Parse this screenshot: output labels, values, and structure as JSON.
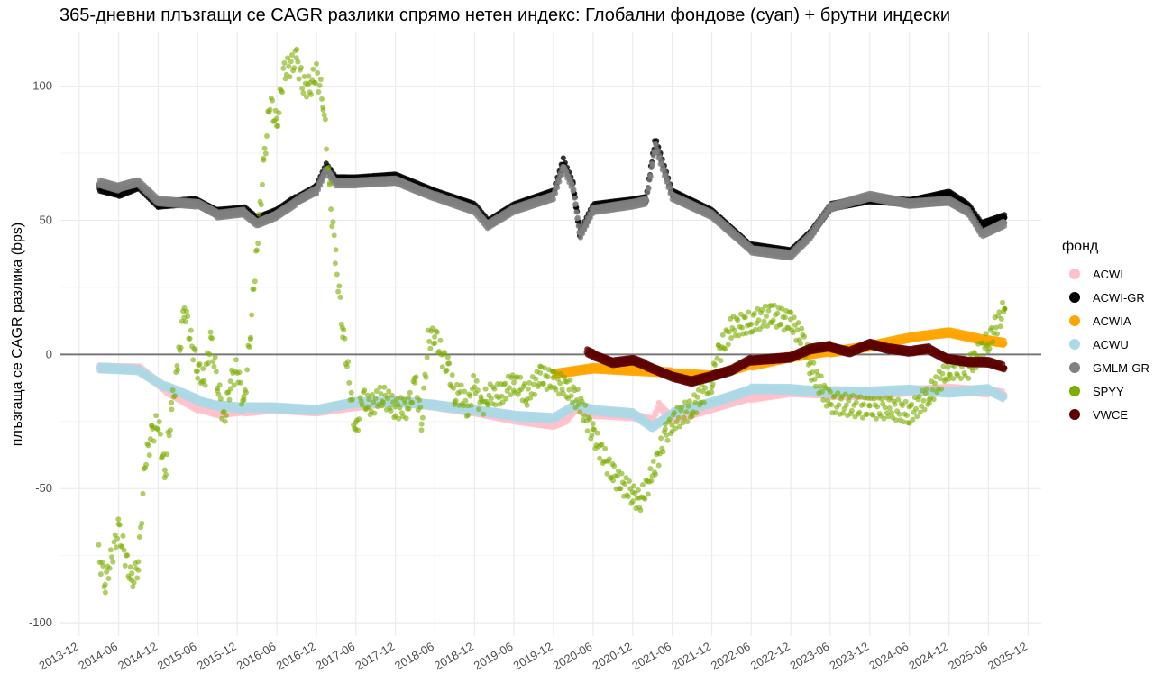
{
  "chart_data": {
    "type": "scatter",
    "title": "365-дневни плъзгащи се CAGR разлики спрямо нетен индекс: Глобални фондове (суап) + брутни индески",
    "xlabel": "",
    "ylabel": "плъзгаща се CAGR разлика (bps)",
    "xlim": [
      "2013-09-01",
      "2026-01-31"
    ],
    "ylim": [
      -105,
      120
    ],
    "y_ticks": [
      -100,
      -50,
      0,
      50,
      100
    ],
    "y_tick_labels": [
      "-100",
      "-50",
      "0",
      "50",
      "100"
    ],
    "x_ticks": [
      "2013-12-01",
      "2014-06-01",
      "2014-12-01",
      "2015-06-01",
      "2015-12-01",
      "2016-06-01",
      "2016-12-01",
      "2017-06-01",
      "2017-12-01",
      "2018-06-01",
      "2018-12-01",
      "2019-06-01",
      "2019-12-01",
      "2020-06-01",
      "2020-12-01",
      "2021-06-01",
      "2021-12-01",
      "2022-06-01",
      "2022-12-01",
      "2023-06-01",
      "2023-12-01",
      "2024-06-01",
      "2024-12-01",
      "2025-06-01",
      "2025-12-01"
    ],
    "x_tick_labels": [
      "2013-12",
      "2014-06",
      "2014-12",
      "2015-06",
      "2015-12",
      "2016-06",
      "2016-12",
      "2017-06",
      "2017-12",
      "2018-06",
      "2018-12",
      "2019-06",
      "2019-12",
      "2020-06",
      "2020-12",
      "2021-06",
      "2021-12",
      "2022-06",
      "2022-12",
      "2023-06",
      "2023-12",
      "2024-06",
      "2024-12",
      "2025-06",
      "2025-12"
    ],
    "grid": true,
    "zero_line": 0,
    "legend_title": "фонд",
    "legend_position": "right",
    "series": [
      {
        "name": "ACWI",
        "color": "#FFC0CB",
        "points": [
          [
            "2014-03-01",
            -5
          ],
          [
            "2014-09-01",
            -5
          ],
          [
            "2015-01-01",
            -13
          ],
          [
            "2015-06-01",
            -20
          ],
          [
            "2015-09-01",
            -22
          ],
          [
            "2016-01-01",
            -21
          ],
          [
            "2016-06-01",
            -20
          ],
          [
            "2016-12-01",
            -21
          ],
          [
            "2017-06-01",
            -19
          ],
          [
            "2017-12-01",
            -17
          ],
          [
            "2018-06-01",
            -19
          ],
          [
            "2018-12-01",
            -21
          ],
          [
            "2019-06-01",
            -24
          ],
          [
            "2019-12-01",
            -26
          ],
          [
            "2020-02-01",
            -24
          ],
          [
            "2020-03-15",
            -20
          ],
          [
            "2020-06-01",
            -22
          ],
          [
            "2020-12-01",
            -23
          ],
          [
            "2021-03-01",
            -25
          ],
          [
            "2021-04-01",
            -19
          ],
          [
            "2021-06-01",
            -24
          ],
          [
            "2021-12-01",
            -20
          ],
          [
            "2022-06-01",
            -16
          ],
          [
            "2022-12-01",
            -14
          ],
          [
            "2023-06-01",
            -15
          ],
          [
            "2023-12-01",
            -15
          ],
          [
            "2024-06-01",
            -14
          ],
          [
            "2024-12-01",
            -13
          ],
          [
            "2025-06-01",
            -14
          ],
          [
            "2025-08-15",
            -15
          ]
        ]
      },
      {
        "name": "ACWI-GR",
        "color": "#000000",
        "points": [
          [
            "2014-03-01",
            62
          ],
          [
            "2014-06-01",
            60
          ],
          [
            "2014-09-01",
            63
          ],
          [
            "2014-12-01",
            56
          ],
          [
            "2015-06-01",
            57
          ],
          [
            "2015-09-01",
            53
          ],
          [
            "2016-01-01",
            54
          ],
          [
            "2016-03-01",
            50
          ],
          [
            "2016-06-01",
            53
          ],
          [
            "2016-09-01",
            58
          ],
          [
            "2016-12-01",
            62
          ],
          [
            "2017-01-15",
            70
          ],
          [
            "2017-03-01",
            65
          ],
          [
            "2017-06-01",
            65
          ],
          [
            "2017-12-01",
            66
          ],
          [
            "2018-06-01",
            60
          ],
          [
            "2018-12-01",
            55
          ],
          [
            "2019-02-01",
            49
          ],
          [
            "2019-06-01",
            55
          ],
          [
            "2019-12-01",
            60
          ],
          [
            "2020-01-15",
            72
          ],
          [
            "2020-03-01",
            63
          ],
          [
            "2020-04-01",
            45
          ],
          [
            "2020-06-01",
            55
          ],
          [
            "2020-12-01",
            57
          ],
          [
            "2021-02-01",
            58
          ],
          [
            "2021-03-15",
            80
          ],
          [
            "2021-06-01",
            60
          ],
          [
            "2021-12-01",
            53
          ],
          [
            "2022-06-01",
            40
          ],
          [
            "2022-12-01",
            38
          ],
          [
            "2023-03-01",
            45
          ],
          [
            "2023-06-01",
            55
          ],
          [
            "2023-12-01",
            58
          ],
          [
            "2024-06-01",
            57
          ],
          [
            "2024-12-01",
            60
          ],
          [
            "2025-03-01",
            55
          ],
          [
            "2025-05-01",
            48
          ],
          [
            "2025-08-15",
            51
          ]
        ]
      },
      {
        "name": "ACWIA",
        "color": "#FFA500",
        "points": [
          [
            "2019-12-01",
            -7
          ],
          [
            "2020-06-01",
            -5
          ],
          [
            "2020-12-01",
            -6
          ],
          [
            "2021-06-01",
            -7
          ],
          [
            "2021-12-01",
            -8
          ],
          [
            "2022-06-01",
            -4
          ],
          [
            "2022-12-01",
            -1
          ],
          [
            "2023-06-01",
            1
          ],
          [
            "2023-12-01",
            3
          ],
          [
            "2024-06-01",
            6
          ],
          [
            "2024-12-01",
            8
          ],
          [
            "2025-06-01",
            5
          ],
          [
            "2025-08-15",
            4
          ]
        ]
      },
      {
        "name": "ACWU",
        "color": "#ADD8E6",
        "points": [
          [
            "2014-03-01",
            -5
          ],
          [
            "2014-09-01",
            -6
          ],
          [
            "2015-01-01",
            -12
          ],
          [
            "2015-06-01",
            -17
          ],
          [
            "2015-09-01",
            -19
          ],
          [
            "2016-01-01",
            -20
          ],
          [
            "2016-06-01",
            -20
          ],
          [
            "2016-12-01",
            -21
          ],
          [
            "2017-06-01",
            -18
          ],
          [
            "2017-12-01",
            -18
          ],
          [
            "2018-06-01",
            -19
          ],
          [
            "2018-12-01",
            -21
          ],
          [
            "2019-06-01",
            -23
          ],
          [
            "2019-12-01",
            -24
          ],
          [
            "2020-03-15",
            -19
          ],
          [
            "2020-06-01",
            -21
          ],
          [
            "2020-12-01",
            -22
          ],
          [
            "2021-03-01",
            -27
          ],
          [
            "2021-06-01",
            -22
          ],
          [
            "2021-12-01",
            -18
          ],
          [
            "2022-06-01",
            -13
          ],
          [
            "2022-12-01",
            -13
          ],
          [
            "2023-06-01",
            -14
          ],
          [
            "2023-12-01",
            -14
          ],
          [
            "2024-06-01",
            -13
          ],
          [
            "2024-12-01",
            -14
          ],
          [
            "2025-06-01",
            -13
          ],
          [
            "2025-08-15",
            -16
          ]
        ]
      },
      {
        "name": "GMLM-GR",
        "color": "#808080",
        "points": [
          [
            "2014-03-01",
            64
          ],
          [
            "2014-06-01",
            62
          ],
          [
            "2014-09-01",
            64
          ],
          [
            "2014-12-01",
            57
          ],
          [
            "2015-06-01",
            56
          ],
          [
            "2015-09-01",
            52
          ],
          [
            "2016-01-01",
            53
          ],
          [
            "2016-03-01",
            49
          ],
          [
            "2016-06-01",
            52
          ],
          [
            "2016-09-01",
            57
          ],
          [
            "2016-12-01",
            61
          ],
          [
            "2017-01-15",
            69
          ],
          [
            "2017-03-01",
            64
          ],
          [
            "2017-06-01",
            64
          ],
          [
            "2017-12-01",
            65
          ],
          [
            "2018-06-01",
            59
          ],
          [
            "2018-12-01",
            54
          ],
          [
            "2019-02-01",
            48
          ],
          [
            "2019-06-01",
            54
          ],
          [
            "2019-12-01",
            59
          ],
          [
            "2020-01-15",
            70
          ],
          [
            "2020-03-01",
            62
          ],
          [
            "2020-04-01",
            44
          ],
          [
            "2020-06-01",
            54
          ],
          [
            "2020-12-01",
            56
          ],
          [
            "2021-02-01",
            57
          ],
          [
            "2021-03-15",
            78
          ],
          [
            "2021-06-01",
            59
          ],
          [
            "2021-12-01",
            52
          ],
          [
            "2022-06-01",
            39
          ],
          [
            "2022-12-01",
            37
          ],
          [
            "2023-03-01",
            44
          ],
          [
            "2023-06-01",
            55
          ],
          [
            "2023-12-01",
            59
          ],
          [
            "2024-06-01",
            56
          ],
          [
            "2024-12-01",
            57
          ],
          [
            "2025-03-01",
            53
          ],
          [
            "2025-05-01",
            45
          ],
          [
            "2025-08-15",
            49
          ]
        ]
      },
      {
        "name": "SPYY",
        "color": "#7CAE00",
        "points": [
          [
            "2014-03-01",
            -75
          ],
          [
            "2014-04-01",
            -85
          ],
          [
            "2014-06-01",
            -65
          ],
          [
            "2014-08-01",
            -85
          ],
          [
            "2014-09-01",
            -78
          ],
          [
            "2014-10-01",
            -40
          ],
          [
            "2014-11-01",
            -30
          ],
          [
            "2014-12-01",
            -25
          ],
          [
            "2015-01-01",
            -45
          ],
          [
            "2015-02-01",
            -20
          ],
          [
            "2015-03-01",
            -5
          ],
          [
            "2015-04-01",
            18
          ],
          [
            "2015-05-01",
            5
          ],
          [
            "2015-06-01",
            -5
          ],
          [
            "2015-07-01",
            -10
          ],
          [
            "2015-08-01",
            5
          ],
          [
            "2015-09-01",
            -10
          ],
          [
            "2015-10-01",
            -25
          ],
          [
            "2015-11-01",
            -10
          ],
          [
            "2015-12-01",
            -5
          ],
          [
            "2016-01-01",
            -20
          ],
          [
            "2016-02-01",
            10
          ],
          [
            "2016-03-01",
            40
          ],
          [
            "2016-04-01",
            70
          ],
          [
            "2016-05-01",
            95
          ],
          [
            "2016-06-01",
            85
          ],
          [
            "2016-07-01",
            105
          ],
          [
            "2016-09-01",
            110
          ],
          [
            "2016-10-01",
            100
          ],
          [
            "2016-11-01",
            100
          ],
          [
            "2016-12-01",
            105
          ],
          [
            "2017-01-01",
            95
          ],
          [
            "2017-02-01",
            60
          ],
          [
            "2017-03-01",
            35
          ],
          [
            "2017-04-01",
            10
          ],
          [
            "2017-05-01",
            -10
          ],
          [
            "2017-06-01",
            -30
          ],
          [
            "2017-07-01",
            -15
          ],
          [
            "2017-08-01",
            -20
          ],
          [
            "2017-10-01",
            -15
          ],
          [
            "2017-12-01",
            -20
          ],
          [
            "2018-02-01",
            -20
          ],
          [
            "2018-03-01",
            -10
          ],
          [
            "2018-04-01",
            -25
          ],
          [
            "2018-05-01",
            5
          ],
          [
            "2018-06-01",
            8
          ],
          [
            "2018-07-01",
            0
          ],
          [
            "2018-08-01",
            -5
          ],
          [
            "2018-09-01",
            -15
          ],
          [
            "2018-10-01",
            -15
          ],
          [
            "2018-11-01",
            -20
          ],
          [
            "2018-12-01",
            -10
          ],
          [
            "2019-01-01",
            -20
          ],
          [
            "2019-02-01",
            -15
          ],
          [
            "2019-04-01",
            -15
          ],
          [
            "2019-06-01",
            -10
          ],
          [
            "2019-08-01",
            -15
          ],
          [
            "2019-10-01",
            -8
          ],
          [
            "2019-12-01",
            -10
          ],
          [
            "2020-02-01",
            -12
          ],
          [
            "2020-04-01",
            -18
          ],
          [
            "2020-06-01",
            -30
          ],
          [
            "2020-09-01",
            -45
          ],
          [
            "2020-12-01",
            -52
          ],
          [
            "2021-01-01",
            -55
          ],
          [
            "2021-03-01",
            -45
          ],
          [
            "2021-05-01",
            -30
          ],
          [
            "2021-06-01",
            -25
          ],
          [
            "2021-09-01",
            -20
          ],
          [
            "2021-12-01",
            -10
          ],
          [
            "2022-01-01",
            0
          ],
          [
            "2022-03-01",
            10
          ],
          [
            "2022-06-01",
            12
          ],
          [
            "2022-09-01",
            15
          ],
          [
            "2022-12-01",
            12
          ],
          [
            "2023-02-01",
            5
          ],
          [
            "2023-03-01",
            -5
          ],
          [
            "2023-06-01",
            -18
          ],
          [
            "2023-12-01",
            -20
          ],
          [
            "2024-03-01",
            -20
          ],
          [
            "2024-06-01",
            -22
          ],
          [
            "2024-09-01",
            -15
          ],
          [
            "2024-12-01",
            -5
          ],
          [
            "2025-03-01",
            -5
          ],
          [
            "2025-06-01",
            5
          ],
          [
            "2025-08-15",
            17
          ]
        ]
      },
      {
        "name": "VWCE",
        "color": "#5C0000",
        "points": [
          [
            "2020-05-01",
            1
          ],
          [
            "2020-06-01",
            0
          ],
          [
            "2020-09-01",
            -3
          ],
          [
            "2020-12-01",
            -2
          ],
          [
            "2021-02-01",
            -4
          ],
          [
            "2021-06-01",
            -8
          ],
          [
            "2021-09-01",
            -10
          ],
          [
            "2021-12-01",
            -8
          ],
          [
            "2022-03-01",
            -6
          ],
          [
            "2022-06-01",
            -2
          ],
          [
            "2022-12-01",
            -1
          ],
          [
            "2023-03-01",
            2
          ],
          [
            "2023-06-01",
            3
          ],
          [
            "2023-09-01",
            1
          ],
          [
            "2023-12-01",
            4
          ],
          [
            "2024-03-01",
            2
          ],
          [
            "2024-06-01",
            1
          ],
          [
            "2024-09-01",
            2
          ],
          [
            "2024-12-01",
            -2
          ],
          [
            "2025-03-01",
            -3
          ],
          [
            "2025-06-01",
            -3
          ],
          [
            "2025-08-15",
            -5
          ]
        ]
      }
    ]
  }
}
